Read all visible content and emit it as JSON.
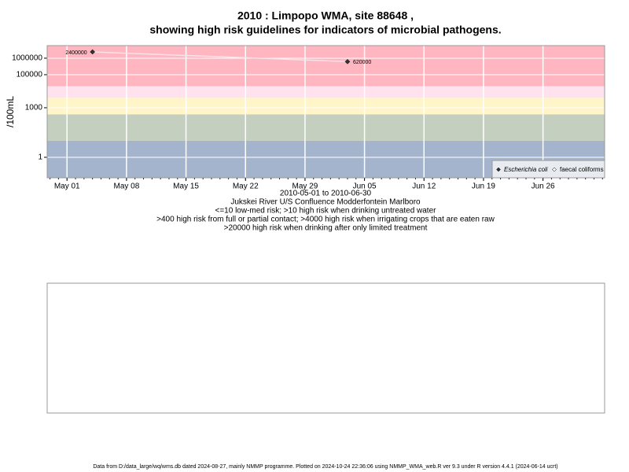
{
  "chart_data": {
    "type": "line",
    "title": "2010 : Limpopo WMA, site 88648 ,",
    "subtitle": "showing high risk guidelines for indicators of microbial pathogens.",
    "y_label": "/100mL",
    "notes": [
      "2010-05-01 to 2010-06-30",
      "Jukskei River U/S Confluence Modderfontein Marlboro",
      "<=10 low-med risk; >10 high risk when drinking untreated water",
      ">400 high risk from full or partial contact; >4000 high risk when irrigating crops that are eaten raw",
      ">20000 high risk when drinking after only limited treatment"
    ],
    "x": [
      "2010-05-04",
      "2010-06-03"
    ],
    "series": [
      {
        "name": "Escherichia coli",
        "color": "#333333",
        "line_color": "#f4e4ea",
        "values": [
          2400000,
          620000
        ]
      },
      {
        "name": "faecal coliforms",
        "color": "#ffffff",
        "line_color": "#ffffff",
        "values": [
          null,
          null
        ]
      }
    ],
    "xlim": [
      "2010-04-28T16:00",
      "2010-07-03T06:00"
    ],
    "xticks": [
      {
        "value": "2010-05-01",
        "label": "May 01"
      },
      {
        "value": "2010-05-08",
        "label": "May 08"
      },
      {
        "value": "2010-05-15",
        "label": "May 15"
      },
      {
        "value": "2010-05-22",
        "label": "May 22"
      },
      {
        "value": "2010-05-29",
        "label": "May 29"
      },
      {
        "value": "2010-06-05",
        "label": "Jun 05"
      },
      {
        "value": "2010-06-12",
        "label": "Jun 12"
      },
      {
        "value": "2010-06-19",
        "label": "Jun 19"
      },
      {
        "value": "2010-06-26",
        "label": "Jun 26"
      }
    ],
    "ylim": [
      0.0575,
      5750000
    ],
    "log_y": true,
    "yticks": [
      1,
      1000,
      100000,
      1000000
    ],
    "bands": [
      {
        "from": 0.0575,
        "to": 10,
        "color": "#a3b4cc"
      },
      {
        "from": 10,
        "to": 400,
        "color": "#c5cfc0"
      },
      {
        "from": 400,
        "to": 4000,
        "color": "#fff5c8"
      },
      {
        "from": 4000,
        "to": 20000,
        "color": "#ffe2ee"
      },
      {
        "from": 20000,
        "to": 5750000,
        "color": "#ffb6c1"
      }
    ],
    "grid": true,
    "legend": "bottom-right",
    "footer": "Data from D:/data_large/wq/wms.db dated 2024-08-27, mainly NMMP programme. Plotted on 2024-10-24 22:36:06 using NMMP_WMA_web.R ver 9.3 under R version 4.4.1 (2024-06-14 ucrt)"
  }
}
